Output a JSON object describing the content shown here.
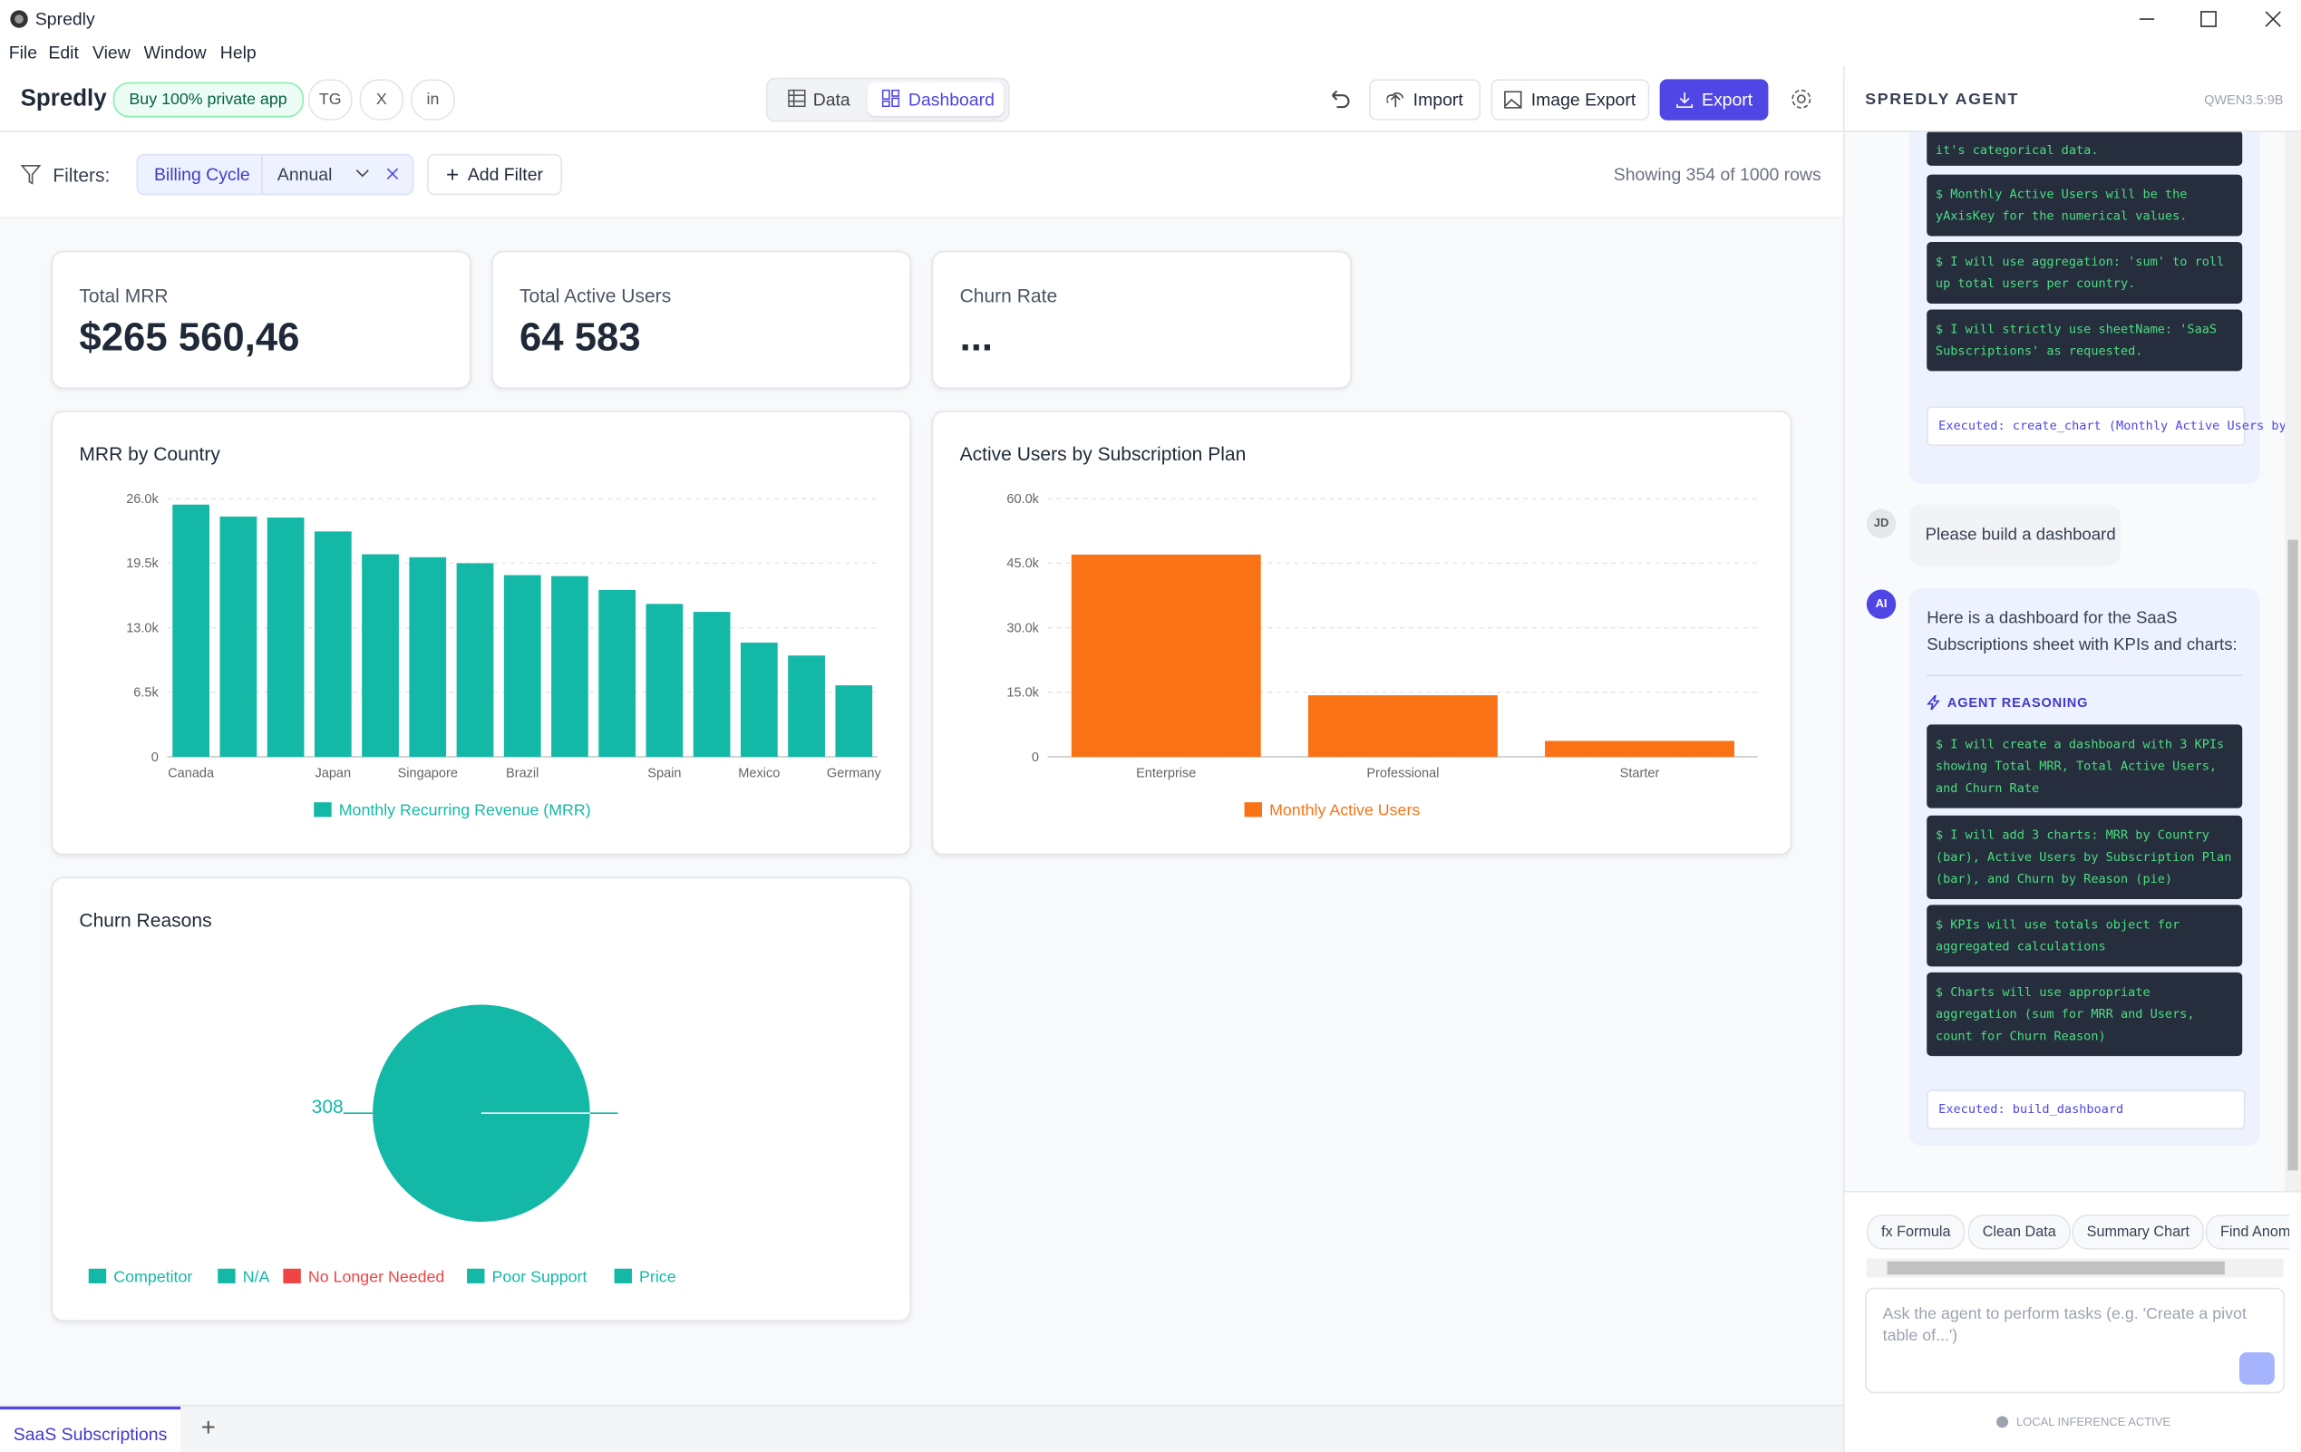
{
  "app": {
    "title": "Spredly"
  },
  "menu": [
    "File",
    "Edit",
    "View",
    "Window",
    "Help"
  ],
  "toolbar": {
    "brand": "Spredly",
    "promo": "Buy 100% private app",
    "socials": [
      "TG",
      "X",
      "in"
    ],
    "tabs": [
      "Data",
      "Dashboard"
    ],
    "buttons": [
      "Import",
      "Image Export",
      "Export"
    ]
  },
  "filters": {
    "label": "Filters:",
    "field": "Billing Cycle",
    "value": "Annual",
    "add": "Add Filter",
    "status": "Showing 354 of 1000 rows"
  },
  "kpis": [
    {
      "label": "Total MRR",
      "value": "$265 560,46"
    },
    {
      "label": "Total Active Users",
      "value": "64 583"
    },
    {
      "label": "Churn Rate",
      "value": "..."
    }
  ],
  "charts": [
    {
      "type": "bar",
      "title": "MRR by Country",
      "categories": [
        "Canada",
        null,
        null,
        "Japan",
        null,
        "Singapore",
        null,
        "Brazil",
        null,
        null,
        "Spain",
        null,
        "Mexico",
        null,
        "Germany"
      ],
      "series": [
        {
          "name": "Monthly Recurring Revenue (MRR)",
          "color": "#14b8a6",
          "values": [
            25400,
            24200,
            24100,
            22700,
            20400,
            20100,
            19500,
            18300,
            18200,
            16800,
            15400,
            14600,
            11500,
            10200,
            7200
          ]
        }
      ],
      "ylim": [
        0,
        26000
      ],
      "yticks": [
        0,
        {
          "value": 6500,
          "label": "6.5k"
        },
        {
          "value": 13000,
          "label": "13.0k"
        },
        {
          "value": 19500,
          "label": "19.5k"
        },
        {
          "value": 26000,
          "label": "26.0k"
        }
      ],
      "grid": true
    },
    {
      "type": "bar",
      "title": "Active Users by Subscription Plan",
      "categories": [
        "Enterprise",
        "Professional",
        "Starter"
      ],
      "series": [
        {
          "name": "Monthly Active Users",
          "color": "#f97316",
          "values": [
            47000,
            14300,
            3700
          ]
        }
      ],
      "ylim": [
        0,
        60000
      ],
      "yticks": [
        0,
        {
          "value": 15000,
          "label": "15.0k"
        },
        {
          "value": 30000,
          "label": "30.0k"
        },
        {
          "value": 45000,
          "label": "45.0k"
        },
        {
          "value": 60000,
          "label": "60.0k"
        }
      ],
      "grid": true
    },
    {
      "type": "pie",
      "title": "Churn Reasons",
      "values": [
        308
      ],
      "color": "#14b8a6",
      "legend": [
        {
          "name": "Competitor",
          "color": "#14b8a6"
        },
        {
          "name": "N/A",
          "color": "#14b8a6"
        },
        {
          "name": "No Longer Needed",
          "color": "#ef4444"
        },
        {
          "name": "Poor Support",
          "color": "#14b8a6"
        },
        {
          "name": "Price",
          "color": "#14b8a6"
        }
      ]
    }
  ],
  "sheet_tab": "SaaS Subscriptions",
  "agent": {
    "title": "SPREDLY AGENT",
    "model": "QWEN3.5:9B",
    "prev_steps": [
      "it's categorical data.",
      "$ Monthly Active Users will be the yAxisKey for the numerical values.",
      "$ I will use aggregation: 'sum' to roll up total users per country.",
      "$ I will strictly use sheetName: 'SaaS Subscriptions' as requested."
    ],
    "prev_executed": "Executed: create_chart (Monthly Active Users by Country)",
    "user": {
      "avatar": "JD",
      "text": "Please build a dashboard"
    },
    "ai": {
      "avatar": "AI",
      "text": "Here is a dashboard for the SaaS Subscriptions sheet with KPIs and charts:",
      "reasoning_title": "AGENT REASONING",
      "steps": [
        "$ I will create a dashboard with 3 KPIs showing Total MRR, Total Active Users, and Churn Rate",
        "$ I will add 3 charts: MRR by Country (bar), Active Users by Subscription Plan (bar), and Churn by Reason (pie)",
        "$ KPIs will use totals object for aggregated calculations",
        "$ Charts will use appropriate aggregation (sum for MRR and Users, count for Churn Reason)"
      ],
      "executed": "Executed: build_dashboard"
    },
    "chips": [
      "fx Formula",
      "Clean Data",
      "Summary Chart",
      "Find Anomalies"
    ],
    "placeholder": "Ask the agent to perform tasks (e.g. 'Create a pivot table of...')",
    "status": "LOCAL INFERENCE ACTIVE"
  }
}
